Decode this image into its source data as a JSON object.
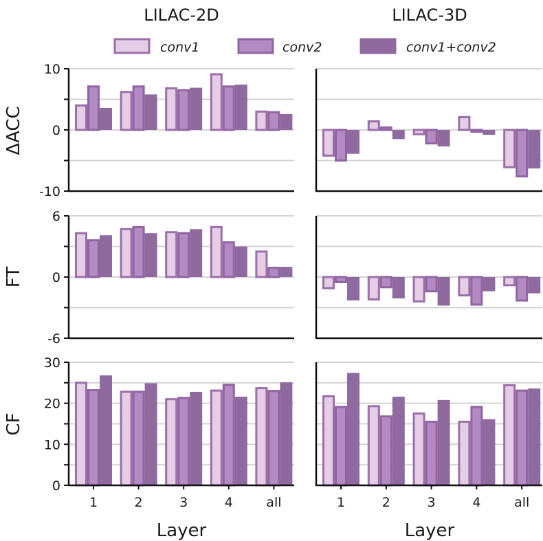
{
  "colors": {
    "conv1_fill": "#e6cde6",
    "conv1_edge": "#9b6fa8",
    "conv2_fill": "#b48ac2",
    "conv2_edge": "#9165a3",
    "both_fill": "#8f6a9f",
    "both_edge": "#8f6a9f",
    "grid": "#d4d4d4",
    "axis": "#111111"
  },
  "legend": [
    {
      "key": "conv1",
      "label": "conv1"
    },
    {
      "key": "conv2",
      "label": "conv2"
    },
    {
      "key": "both",
      "label": "conv1+conv2"
    }
  ],
  "columns": [
    {
      "key": "2d",
      "title": "LILAC-2D"
    },
    {
      "key": "3d",
      "title": "LILAC-3D"
    }
  ],
  "xlabel": "Layer",
  "chart_data": [
    {
      "type": "bar",
      "row": "acc",
      "column": "2d",
      "ylabel": "ΔACC",
      "categories": [
        "1",
        "2",
        "3",
        "4",
        "all"
      ],
      "ylim": [
        -10,
        10
      ],
      "yticks": [
        -10,
        0,
        10
      ],
      "series": [
        {
          "name": "conv1",
          "values": [
            4.0,
            6.2,
            6.8,
            9.1,
            3.0
          ]
        },
        {
          "name": "conv2",
          "values": [
            7.1,
            7.1,
            6.5,
            7.1,
            2.9
          ]
        },
        {
          "name": "conv1+conv2",
          "values": [
            3.6,
            5.8,
            6.9,
            7.4,
            2.6
          ]
        }
      ]
    },
    {
      "type": "bar",
      "row": "acc",
      "column": "3d",
      "ylabel": "ΔACC",
      "categories": [
        "1",
        "2",
        "3",
        "4",
        "all"
      ],
      "ylim": [
        -10,
        10
      ],
      "yticks": [
        -10,
        0,
        10
      ],
      "series": [
        {
          "name": "conv1",
          "values": [
            -4.2,
            1.4,
            -0.7,
            2.1,
            -6.1
          ]
        },
        {
          "name": "conv2",
          "values": [
            -5.0,
            0.4,
            -2.2,
            -0.3,
            -7.6
          ]
        },
        {
          "name": "conv1+conv2",
          "values": [
            -3.9,
            -1.5,
            -2.7,
            -0.8,
            -6.3
          ]
        }
      ]
    },
    {
      "type": "bar",
      "row": "ft",
      "column": "2d",
      "ylabel": "FT",
      "categories": [
        "1",
        "2",
        "3",
        "4",
        "all"
      ],
      "ylim": [
        -6,
        6
      ],
      "yticks": [
        -6,
        0,
        6
      ],
      "series": [
        {
          "name": "conv1",
          "values": [
            4.3,
            4.7,
            4.4,
            4.9,
            2.5
          ]
        },
        {
          "name": "conv2",
          "values": [
            3.6,
            4.9,
            4.3,
            3.4,
            0.9
          ]
        },
        {
          "name": "conv1+conv2",
          "values": [
            4.1,
            4.3,
            4.7,
            3.0,
            1.0
          ]
        }
      ]
    },
    {
      "type": "bar",
      "row": "ft",
      "column": "3d",
      "ylabel": "FT",
      "categories": [
        "1",
        "2",
        "3",
        "4",
        "all"
      ],
      "ylim": [
        -6,
        6
      ],
      "yticks": [
        -6,
        0,
        6
      ],
      "series": [
        {
          "name": "conv1",
          "values": [
            -1.1,
            -2.2,
            -2.4,
            -1.8,
            -0.8
          ]
        },
        {
          "name": "conv2",
          "values": [
            -0.5,
            -1.0,
            -1.4,
            -2.7,
            -2.3
          ]
        },
        {
          "name": "conv1+conv2",
          "values": [
            -2.3,
            -2.1,
            -2.8,
            -1.4,
            -1.6
          ]
        }
      ]
    },
    {
      "type": "bar",
      "row": "cf",
      "column": "2d",
      "ylabel": "CF",
      "categories": [
        "1",
        "2",
        "3",
        "4",
        "all"
      ],
      "ylim": [
        0,
        30
      ],
      "yticks": [
        0,
        10,
        20,
        30
      ],
      "series": [
        {
          "name": "conv1",
          "values": [
            25.0,
            22.8,
            21.0,
            23.1,
            23.7
          ]
        },
        {
          "name": "conv2",
          "values": [
            23.2,
            22.8,
            21.3,
            24.5,
            23.0
          ]
        },
        {
          "name": "conv1+conv2",
          "values": [
            26.8,
            24.9,
            22.8,
            21.6,
            25.1
          ]
        }
      ]
    },
    {
      "type": "bar",
      "row": "cf",
      "column": "3d",
      "ylabel": "CF",
      "categories": [
        "1",
        "2",
        "3",
        "4",
        "all"
      ],
      "ylim": [
        0,
        30
      ],
      "yticks": [
        0,
        10,
        20,
        30
      ],
      "series": [
        {
          "name": "conv1",
          "values": [
            21.7,
            19.3,
            17.5,
            15.5,
            24.4
          ]
        },
        {
          "name": "conv2",
          "values": [
            19.1,
            16.8,
            15.5,
            19.1,
            23.1
          ]
        },
        {
          "name": "conv1+conv2",
          "values": [
            27.4,
            21.6,
            20.8,
            16.1,
            23.6
          ]
        }
      ]
    }
  ]
}
